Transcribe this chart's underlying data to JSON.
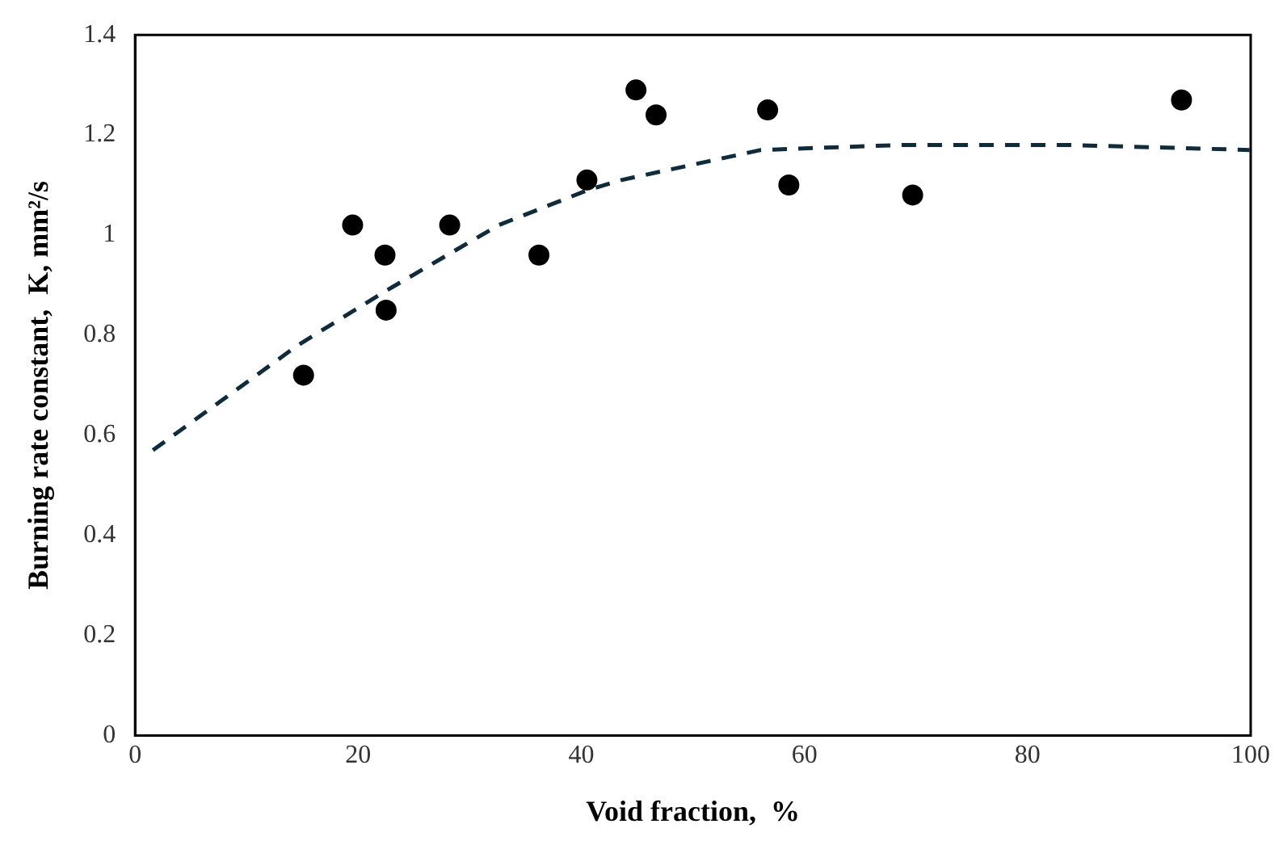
{
  "chart_data": {
    "type": "scatter",
    "xlabel": "Void fraction,  %",
    "ylabel": "Burning rate constant,  K, mm²/s",
    "xlim": [
      0,
      100
    ],
    "xticks": [
      0,
      20,
      40,
      60,
      80,
      100
    ],
    "ylim": [
      0,
      1.4
    ],
    "yticks": [
      0,
      0.2,
      0.4,
      0.6,
      0.8,
      1,
      1.2,
      1.4
    ],
    "grid": false,
    "legend": false,
    "series": [
      {
        "type": "scatter",
        "color": "#000000",
        "marker": "circle",
        "x": [
          15.1,
          19.5,
          22.4,
          22.5,
          28.2,
          36.2,
          40.5,
          44.9,
          46.7,
          56.7,
          58.6,
          69.7,
          93.8
        ],
        "values": [
          0.72,
          1.02,
          0.96,
          0.85,
          1.02,
          0.96,
          1.11,
          1.29,
          1.24,
          1.25,
          1.1,
          1.08,
          1.27
        ]
      },
      {
        "type": "line",
        "color": "#0f2b3c",
        "marker": "none",
        "line_style": "dashed",
        "x": [
          1.6,
          14.6,
          22.6,
          32.6,
          40.6,
          43.6,
          56.1,
          68.6,
          83.7,
          99.9
        ],
        "values": [
          0.57,
          0.78,
          0.89,
          1.02,
          1.09,
          1.11,
          1.17,
          1.18,
          1.18,
          1.17
        ]
      }
    ]
  }
}
